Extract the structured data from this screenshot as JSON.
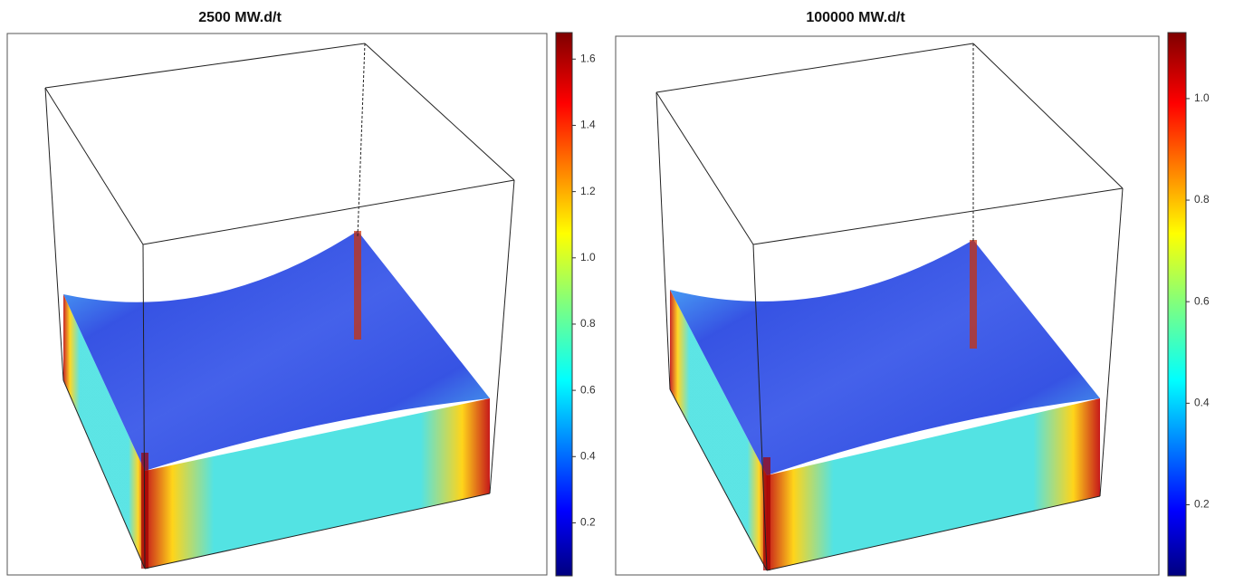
{
  "chart_data": [
    {
      "type": "surface",
      "title": "2500 MW.d/t",
      "clim": [
        0.04,
        1.68
      ],
      "cticks": [
        0.2,
        0.4,
        0.6,
        0.8,
        {
          "value": 1,
          "label": "1.0"
        },
        1.2,
        1.4,
        1.6
      ]
    },
    {
      "type": "surface",
      "title": "100000 MW.d/t",
      "clim": [
        0.06,
        1.13
      ],
      "cticks": [
        0.2,
        0.4,
        0.6,
        0.8,
        {
          "value": 1,
          "label": "1.0"
        }
      ]
    }
  ]
}
